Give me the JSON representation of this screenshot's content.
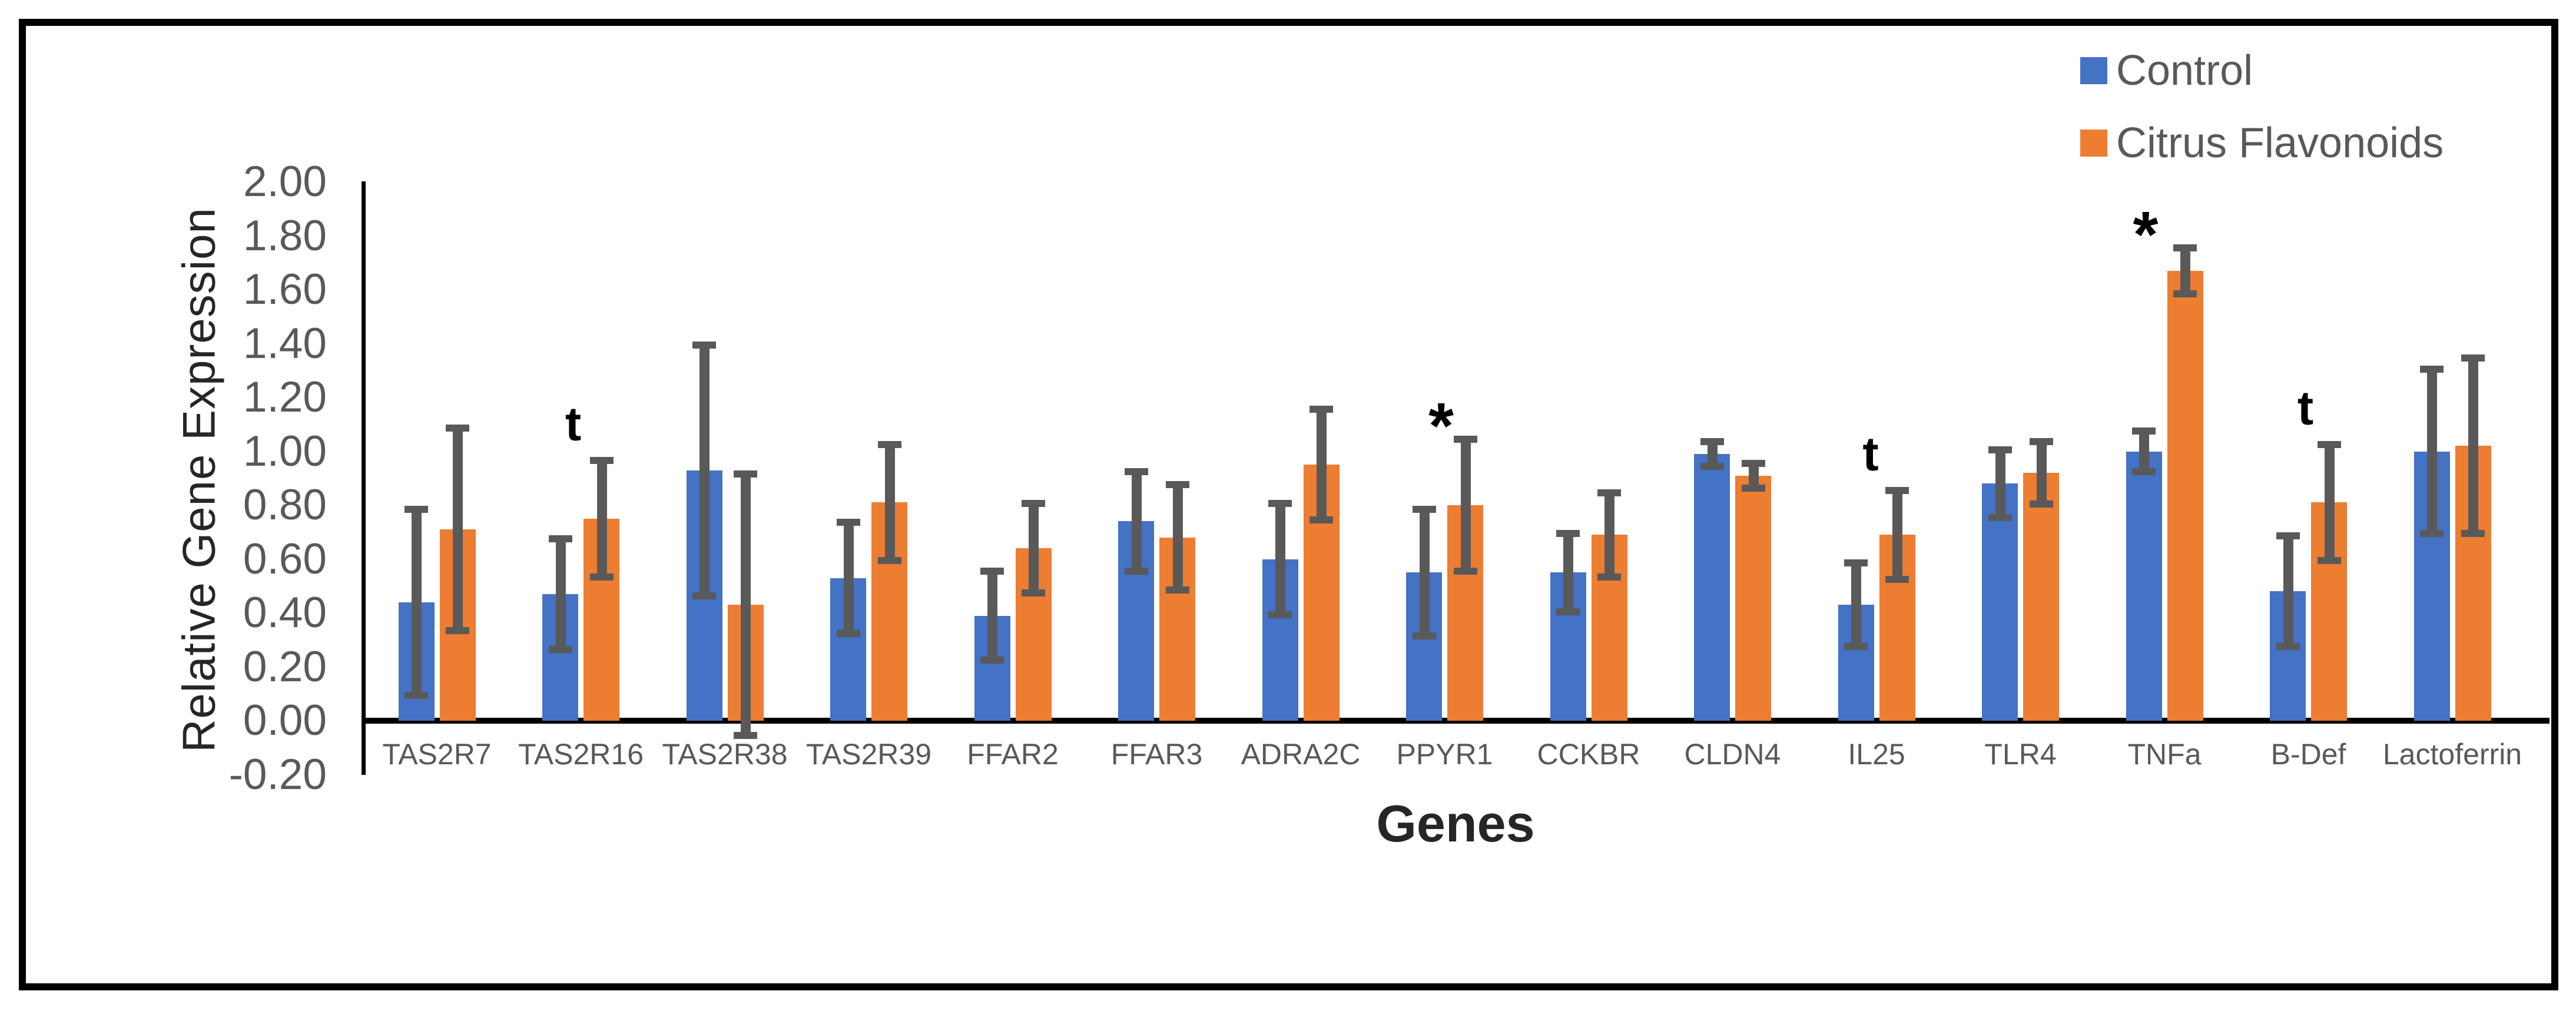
{
  "figure": {
    "background": "#ffffff",
    "frame_color": "#000000"
  },
  "chart_data": {
    "type": "bar",
    "title": "",
    "xlabel": "Genes",
    "ylabel": "Relative Gene Expression",
    "ylim": [
      -0.2,
      2.0
    ],
    "ytick_step": 0.2,
    "ytick_labels": [
      "2.00",
      "1.80",
      "1.60",
      "1.40",
      "1.20",
      "1.00",
      "0.80",
      "0.60",
      "0.40",
      "0.20",
      "0.00",
      "-0.20"
    ],
    "grid": false,
    "legend_position": "top-right",
    "categories": [
      "TAS2R7",
      "TAS2R16",
      "TAS2R38",
      "TAS2R39",
      "FFAR2",
      "FFAR3",
      "ADRA2C",
      "PPYR1",
      "CCKBR",
      "CLDN4",
      "IL25",
      "TLR4",
      "TNFa",
      "B-Def",
      "Lactoferrin"
    ],
    "series": [
      {
        "name": "Control",
        "color": "#4472C4",
        "values": [
          0.44,
          0.47,
          0.93,
          0.53,
          0.39,
          0.74,
          0.6,
          0.55,
          0.55,
          0.99,
          0.43,
          0.88,
          1.0,
          0.48,
          1.0
        ],
        "error": [
          0.35,
          0.21,
          0.47,
          0.21,
          0.17,
          0.19,
          0.21,
          0.24,
          0.15,
          0.05,
          0.16,
          0.13,
          0.08,
          0.21,
          0.31
        ]
      },
      {
        "name": "Citrus Flavonoids",
        "color": "#ED7D31",
        "values": [
          0.71,
          0.75,
          0.43,
          0.81,
          0.64,
          0.68,
          0.95,
          0.8,
          0.69,
          0.91,
          0.69,
          0.92,
          1.67,
          0.81,
          1.02
        ],
        "error": [
          0.38,
          0.22,
          0.49,
          0.22,
          0.17,
          0.2,
          0.21,
          0.25,
          0.16,
          0.05,
          0.17,
          0.12,
          0.09,
          0.22,
          0.33
        ]
      }
    ],
    "error_bar_color": "#595959",
    "annotations": [
      {
        "category": "TAS2R16",
        "text": "t"
      },
      {
        "category": "PPYR1",
        "text": "*"
      },
      {
        "category": "IL25",
        "text": "t"
      },
      {
        "category": "TNFa",
        "text": "*"
      },
      {
        "category": "B-Def",
        "text": "t"
      }
    ]
  },
  "text_colors": {
    "tick_labels": "#595959",
    "axis_titles": "#262626",
    "annotations": "#000000"
  }
}
